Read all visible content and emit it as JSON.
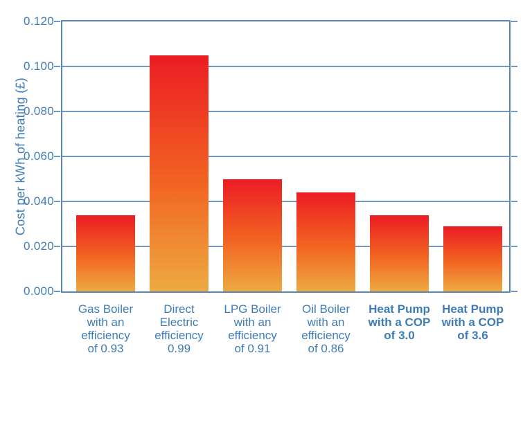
{
  "chart_data": {
    "type": "bar",
    "title": "",
    "xlabel": "",
    "ylabel": "Cost per kWh of heating (£)",
    "ylim": [
      0,
      0.12
    ],
    "ytick_step": 0.02,
    "yticks": [
      "0.120",
      "0.100",
      "0.080",
      "0.060",
      "0.040",
      "0.020",
      "0.000"
    ],
    "grid": "horizontal",
    "legend": "none",
    "categories": [
      "Gas Boiler with an efficiency of 0.93",
      "Direct Electric efficiency 0.99",
      "LPG Boiler with an efficiency of 0.91",
      "Oil Boiler with an efficiency of 0.86",
      "Heat Pump with a COP of 3.0",
      "Heat Pump with a COP of 3.6"
    ],
    "bars": [
      {
        "label_lines": "Gas Boiler\nwith an\nefficiency\nof 0.93",
        "value": 0.034,
        "bold": false
      },
      {
        "label_lines": "Direct\nElectric\nefficiency\n0.99",
        "value": 0.105,
        "bold": false
      },
      {
        "label_lines": "LPG Boiler\nwith an\nefficiency\nof 0.91",
        "value": 0.05,
        "bold": false
      },
      {
        "label_lines": "Oil Boiler\nwith an\nefficiency\nof 0.86",
        "value": 0.044,
        "bold": false
      },
      {
        "label_lines": "Heat Pump\nwith a COP\nof 3.0",
        "value": 0.034,
        "bold": true
      },
      {
        "label_lines": "Heat Pump\nwith a COP\nof 3.6",
        "value": 0.029,
        "bold": true
      }
    ],
    "colors": {
      "bar_gradient_top": "#ec1c24",
      "bar_gradient_mid": "#f26522",
      "bar_gradient_bottom": "#edaa42",
      "axis_text": "#3f7cb6",
      "gridline": "#7097be",
      "axis_border": "#5886b5",
      "background": "#ffffff"
    }
  }
}
